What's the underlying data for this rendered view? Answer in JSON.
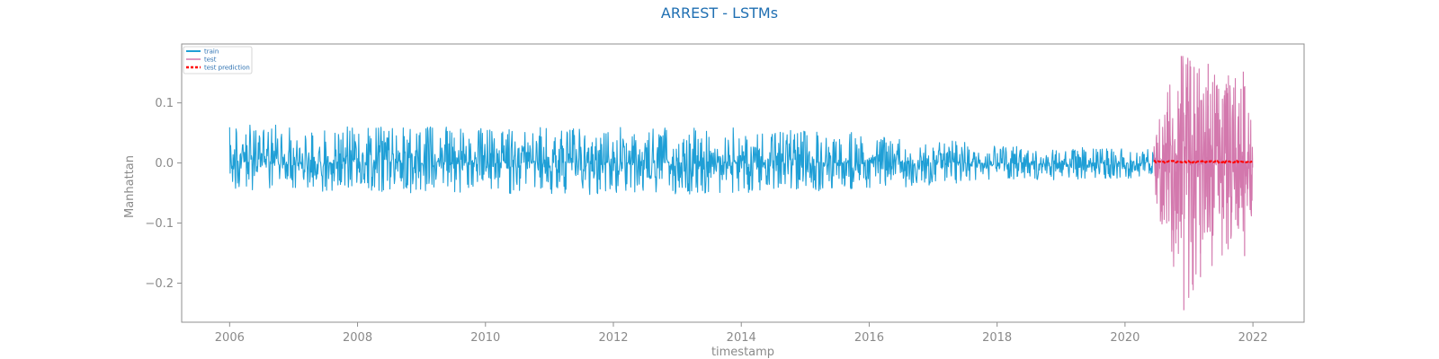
{
  "chart_data": {
    "type": "line",
    "title": "ARREST - LSTMs",
    "xlabel": "timestamp",
    "ylabel": "Manhattan",
    "xlim": [
      2005.25,
      2022.8
    ],
    "ylim": [
      -0.265,
      0.198
    ],
    "x_ticks": [
      2006,
      2008,
      2010,
      2012,
      2014,
      2016,
      2018,
      2020,
      2022
    ],
    "x_tick_labels": [
      "2006",
      "2008",
      "2010",
      "2012",
      "2014",
      "2016",
      "2018",
      "2020",
      "2022"
    ],
    "y_ticks": [
      0.1,
      0.0,
      -0.1,
      -0.2
    ],
    "y_tick_labels": [
      "0.1",
      "0.0",
      "−0.1",
      "−0.2"
    ],
    "legend_position": "top-left",
    "series": [
      {
        "name": "train",
        "color": "#1f9fd6",
        "style": "solid",
        "x_range": [
          2006.0,
          2020.45
        ],
        "envelope": [
          {
            "x": 2006.0,
            "low": -0.045,
            "high": 0.065
          },
          {
            "x": 2008.0,
            "low": -0.05,
            "high": 0.06
          },
          {
            "x": 2010.0,
            "low": -0.05,
            "high": 0.06
          },
          {
            "x": 2012.0,
            "low": -0.055,
            "high": 0.06
          },
          {
            "x": 2014.0,
            "low": -0.05,
            "high": 0.06
          },
          {
            "x": 2016.0,
            "low": -0.045,
            "high": 0.05
          },
          {
            "x": 2018.0,
            "low": -0.03,
            "high": 0.03
          },
          {
            "x": 2020.45,
            "low": -0.025,
            "high": 0.025
          }
        ]
      },
      {
        "name": "test",
        "color": "#d378ad",
        "style": "solid",
        "x_range": [
          2020.45,
          2022.0
        ],
        "min": -0.245,
        "max": 0.178,
        "envelope": [
          {
            "x": 2020.45,
            "low": -0.04,
            "high": 0.03
          },
          {
            "x": 2020.6,
            "low": -0.13,
            "high": 0.12
          },
          {
            "x": 2020.9,
            "low": -0.245,
            "high": 0.178
          },
          {
            "x": 2021.2,
            "low": -0.19,
            "high": 0.17
          },
          {
            "x": 2021.6,
            "low": -0.15,
            "high": 0.15
          },
          {
            "x": 2022.0,
            "low": -0.1,
            "high": 0.12
          }
        ]
      },
      {
        "name": "test prediction",
        "color": "#ff0000",
        "style": "dashed",
        "x_range": [
          2020.45,
          2022.0
        ],
        "value": 0.002
      }
    ]
  }
}
